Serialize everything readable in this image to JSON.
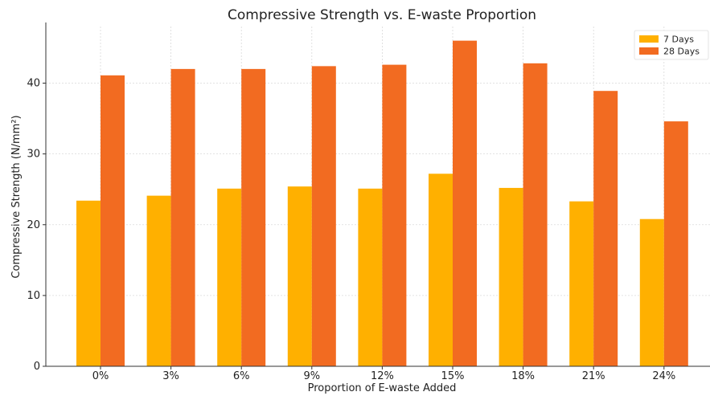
{
  "chart_data": {
    "type": "bar",
    "title": "Compressive Strength vs. E-waste Proportion",
    "xlabel": "Proportion of E-waste Added",
    "ylabel": "Compressive Strength (N/mm²)",
    "categories": [
      "0%",
      "3%",
      "6%",
      "9%",
      "12%",
      "15%",
      "18%",
      "21%",
      "24%"
    ],
    "series": [
      {
        "name": "7 Days",
        "color": "#FFB000",
        "values": [
          23.4,
          24.1,
          25.1,
          25.4,
          25.1,
          27.2,
          25.2,
          23.3,
          20.8
        ]
      },
      {
        "name": "28 Days",
        "color": "#F26B21",
        "values": [
          41.1,
          42.0,
          42.0,
          42.4,
          42.6,
          46.0,
          42.8,
          38.9,
          34.6
        ]
      }
    ],
    "ylim": [
      0,
      48
    ],
    "yticks": [
      0,
      10,
      20,
      30,
      40
    ],
    "grid": true,
    "legend_position": "top-right"
  }
}
